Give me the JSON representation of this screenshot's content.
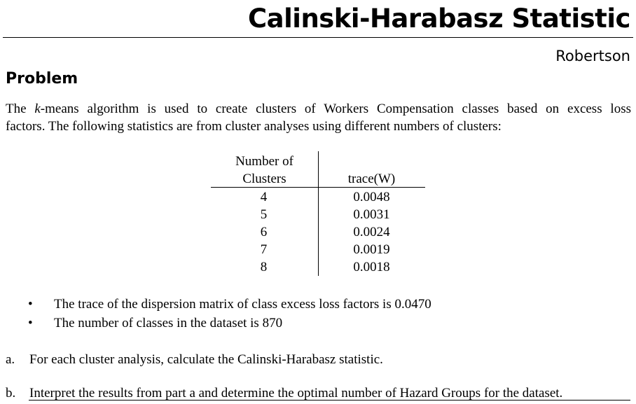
{
  "header": {
    "title": "Calinski-Harabasz Statistic",
    "author": "Robertson"
  },
  "section": {
    "heading": "Problem"
  },
  "intro": {
    "line1_pre": "The ",
    "line1_k": "k",
    "line1_post": "-means algorithm is used to create clusters of Workers Compensation classes based on excess loss",
    "line2": "factors. The following statistics are from cluster analyses using different numbers of clusters:"
  },
  "table": {
    "col1_header_line1": "Number of",
    "col1_header_line2": "Clusters",
    "col2_header": "trace(W)",
    "rows": [
      {
        "clusters": "4",
        "trace": "0.0048"
      },
      {
        "clusters": "5",
        "trace": "0.0031"
      },
      {
        "clusters": "6",
        "trace": "0.0024"
      },
      {
        "clusters": "7",
        "trace": "0.0019"
      },
      {
        "clusters": "8",
        "trace": "0.0018"
      }
    ]
  },
  "bullets": [
    "The trace of the dispersion matrix of class excess loss factors is 0.0470",
    "The number of classes in the dataset is 870"
  ],
  "bullet_symbol": "•",
  "questions": {
    "a_label": "a.",
    "a_text": "For each cluster analysis, calculate the Calinski-Harabasz statistic.",
    "b_label": "b.",
    "b_text": "Interpret the results from part a and determine the optimal number of Hazard Groups for the dataset."
  }
}
